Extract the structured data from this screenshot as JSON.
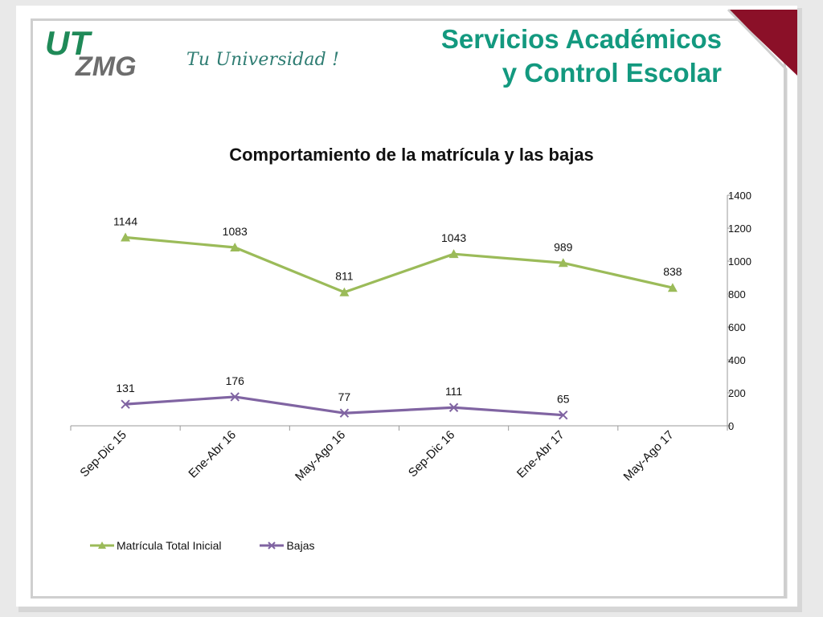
{
  "header": {
    "logo_text_top": "UT",
    "logo_text_bottom": "ZMG",
    "tagline": "Tu Universidad !",
    "title_line1": "Servicios Académicos",
    "title_line2": "y Control Escolar"
  },
  "colors": {
    "title": "#13997f",
    "logo_green": "#1f8a58",
    "logo_gray": "#6d6d6d",
    "corner_red": "#8b1028",
    "series_matricula": "#9bbb59",
    "series_bajas": "#8064a2"
  },
  "chart_data": {
    "type": "line",
    "title": "Comportamiento de la matrícula y las bajas",
    "categories": [
      "Sep-Dic 15",
      "Ene-Abr 16",
      "May-Ago 16",
      "Sep-Dic 16",
      "Ene-Abr 17",
      "May-Ago 17"
    ],
    "series": [
      {
        "name": "Matrícula Total Inicial",
        "marker": "triangle",
        "values": [
          1144,
          1083,
          811,
          1043,
          989,
          838
        ]
      },
      {
        "name": "Bajas",
        "marker": "x",
        "values": [
          131,
          176,
          77,
          111,
          65,
          null
        ]
      }
    ],
    "y_axis": {
      "position": "right",
      "ylim": [
        0,
        1400
      ],
      "ticks": [
        0,
        200,
        400,
        600,
        800,
        1000,
        1200,
        1400
      ]
    },
    "grid": false,
    "data_labels": true,
    "legend_position": "bottom-left"
  }
}
